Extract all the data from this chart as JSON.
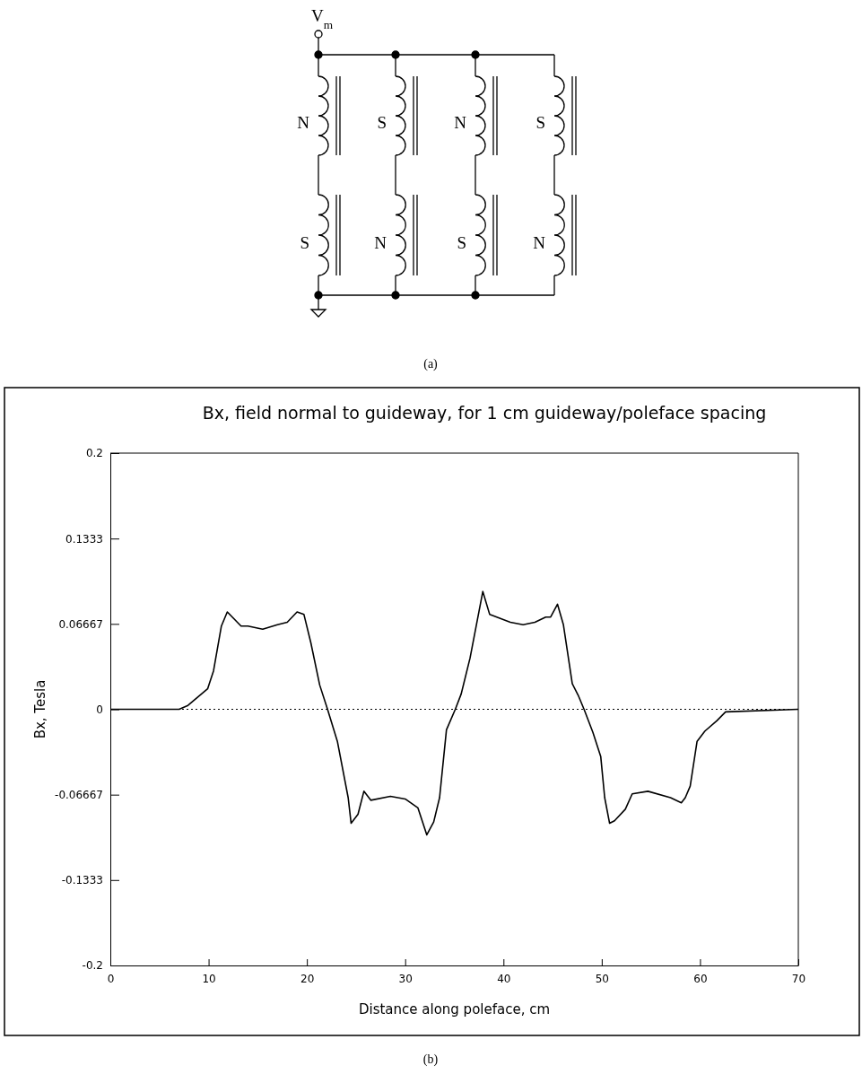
{
  "chart_data": [
    {
      "type": "other",
      "annotations": [
        "V$_{m}$",
        "N",
        "S",
        "S",
        "N",
        "N",
        "S",
        "S",
        "N",
        "(a)"
      ]
    },
    {
      "type": "line",
      "title": "Bx, field normal to guideway, for 1 cm guideway/poleface spacing",
      "xlabel": "Distance along poleface, cm",
      "ylabel": "Bx, Tesla",
      "annotations": [
        "(b)"
      ],
      "xlim": [
        0,
        70
      ],
      "xticks": [
        0,
        10,
        20,
        30,
        40,
        50,
        60,
        70
      ],
      "ylim": [
        -0.2,
        0.2
      ],
      "yticks": [
        -0.2,
        -0.1333,
        -0.06667,
        0,
        0.06667,
        0.1333,
        0.2
      ],
      "ref_lines": [
        {
          "axis": "y",
          "value": 0,
          "line_style": "dotted",
          "color": "#000000"
        }
      ],
      "marker": "none",
      "line_style": "solid",
      "series": [
        {
          "color": "#000000",
          "x": [
            0,
            7.0,
            7.9,
            9.9,
            10.5,
            11.3,
            11.9,
            13.3,
            14.0,
            15.5,
            17.0,
            18.0,
            19.0,
            19.7,
            20.4,
            21.3,
            22.1,
            23.1,
            24.2,
            24.5,
            25.2,
            25.8,
            26.5,
            28.5,
            30.0,
            31.3,
            32.2,
            32.9,
            33.5,
            34.2,
            35.1,
            35.7,
            36.6,
            37.9,
            38.6,
            40.7,
            42.0,
            43.2,
            44.3,
            44.8,
            45.5,
            46.1,
            47.0,
            47.6,
            48.2,
            49.1,
            49.9,
            50.3,
            50.8,
            51.3,
            52.4,
            53.1,
            54.7,
            57.0,
            58.1,
            58.5,
            59.0,
            59.7,
            60.5,
            61.7,
            62.6,
            70
          ],
          "values": [
            0,
            0,
            0.003,
            0.016,
            0.03,
            0.065,
            0.076,
            0.065,
            0.065,
            0.0625,
            0.066,
            0.068,
            0.076,
            0.074,
            0.052,
            0.019,
            0,
            -0.025,
            -0.069,
            -0.089,
            -0.082,
            -0.064,
            -0.071,
            -0.068,
            -0.07,
            -0.077,
            -0.098,
            -0.088,
            -0.069,
            -0.016,
            0,
            0.012,
            0.04,
            0.092,
            0.074,
            0.068,
            0.066,
            0.068,
            0.072,
            0.072,
            0.082,
            0.066,
            0.02,
            0.011,
            0,
            -0.018,
            -0.037,
            -0.069,
            -0.089,
            -0.087,
            -0.078,
            -0.066,
            -0.064,
            -0.069,
            -0.073,
            -0.069,
            -0.06,
            -0.025,
            -0.017,
            -0.009,
            -0.002,
            0
          ]
        }
      ]
    }
  ]
}
